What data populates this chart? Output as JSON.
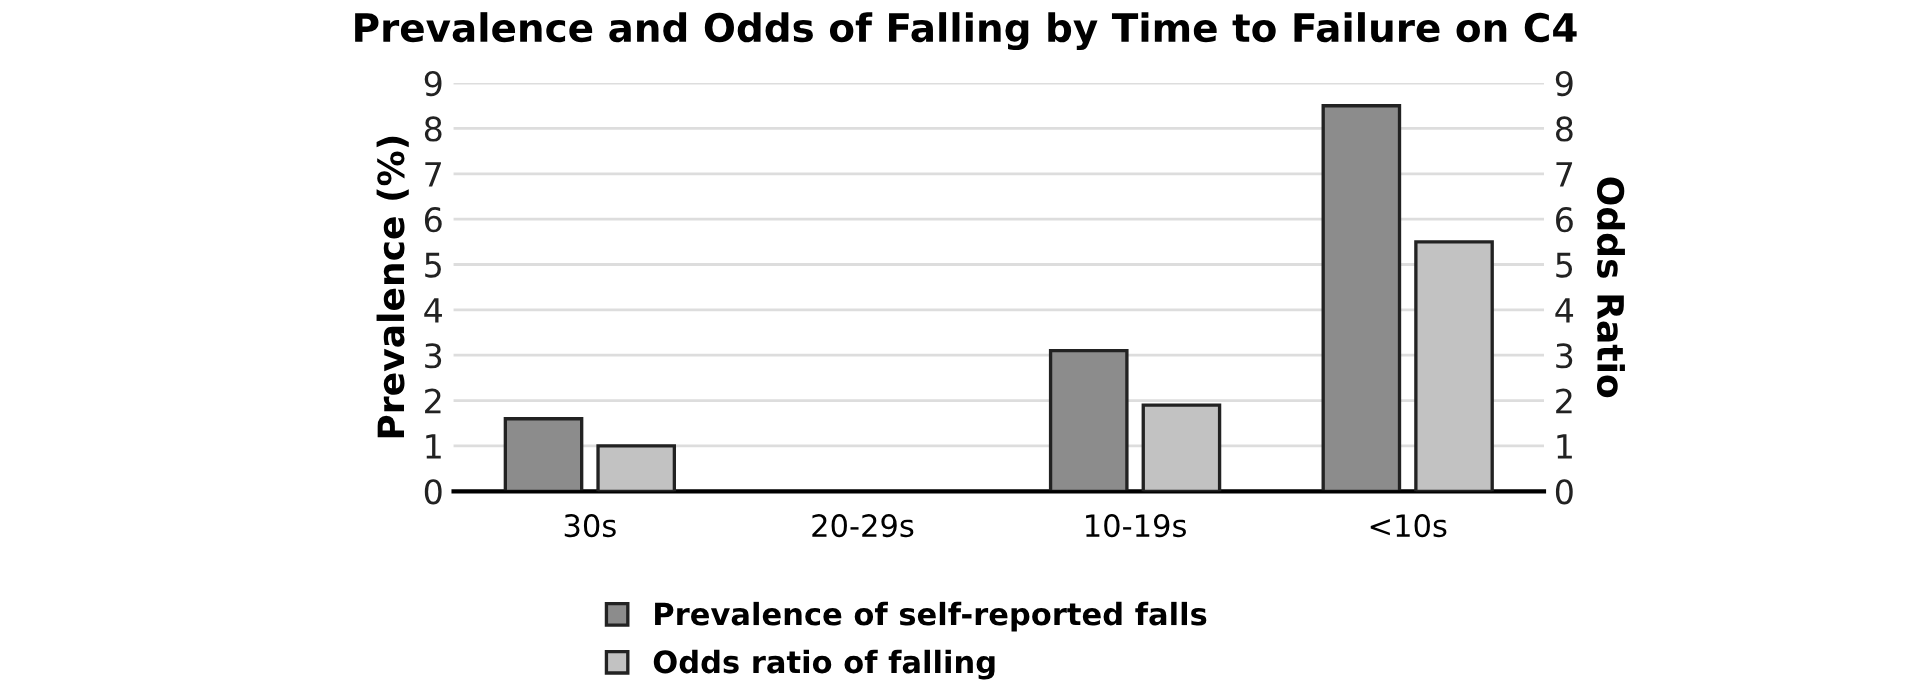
{
  "chart_data": {
    "type": "bar",
    "title": "Prevalence and Odds of Falling by Time to Failure on C4",
    "ylabel": "Prevalence (%)",
    "y2label": "Odds Ratio",
    "categories": [
      "30s",
      "20-29s",
      "10-19s",
      "<10s"
    ],
    "series": [
      {
        "name": "Prevalence of self-reported falls",
        "color": "#8c8c8c",
        "values": [
          1.6,
          null,
          3.1,
          8.5
        ]
      },
      {
        "name": "Odds ratio of falling",
        "color": "#c2c2c2",
        "values": [
          1.0,
          null,
          1.9,
          5.5
        ],
        "axis": "y2"
      }
    ],
    "ylim": [
      0,
      9
    ],
    "yticks": [
      0,
      1,
      2,
      3,
      4,
      5,
      6,
      7,
      8,
      9
    ],
    "y2lim": [
      0,
      9
    ],
    "y2ticks": [
      0,
      1,
      2,
      3,
      4,
      5,
      6,
      7,
      8,
      9
    ],
    "grid": "y",
    "legend": "bottom"
  }
}
